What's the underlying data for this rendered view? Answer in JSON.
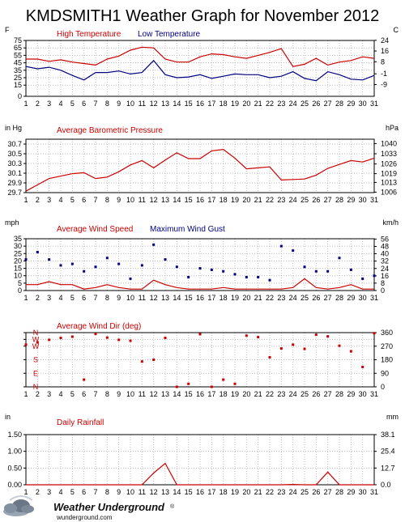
{
  "page": {
    "title": "KMDSMITH1 Weather Graph for November 2012",
    "colors": {
      "red": "#cc0000",
      "blue": "#000080",
      "grid": "#bbbbbb",
      "frame": "#000000"
    }
  },
  "footer": {
    "logo_name": "Weather Underground",
    "logo_mark": "®",
    "logo_url": "wunderground.com"
  },
  "chart_data": [
    {
      "type": "line",
      "title": "",
      "left_unit": "F",
      "right_unit": "C",
      "legend": [
        {
          "name": "High Temperature",
          "color": "#cc0000"
        },
        {
          "name": "Low Temperature",
          "color": "#000080"
        }
      ],
      "x_ticks": [
        1,
        2,
        3,
        4,
        5,
        6,
        7,
        8,
        9,
        10,
        11,
        12,
        13,
        14,
        15,
        16,
        17,
        18,
        19,
        20,
        21,
        22,
        23,
        24,
        25,
        26,
        27,
        28,
        29,
        30,
        31
      ],
      "xlim": [
        1,
        31
      ],
      "ylim": [
        0,
        75
      ],
      "left_ticks": [
        {
          "v": 0,
          "label": "0"
        },
        {
          "v": 15,
          "label": "15"
        },
        {
          "v": 25,
          "label": "25"
        },
        {
          "v": 35,
          "label": "35"
        },
        {
          "v": 45,
          "label": "45"
        },
        {
          "v": 55,
          "label": "55"
        },
        {
          "v": 65,
          "label": "65"
        },
        {
          "v": 75,
          "label": "75"
        }
      ],
      "right_ticks": [
        {
          "v": 75.2,
          "label": "24"
        },
        {
          "v": 60.8,
          "label": "16"
        },
        {
          "v": 46.4,
          "label": "8"
        },
        {
          "v": 30.2,
          "label": "-1"
        },
        {
          "v": 15.8,
          "label": "-9"
        }
      ],
      "series": [
        {
          "name": "High Temperature",
          "color": "#cc0000",
          "x": [
            1,
            2,
            3,
            4,
            5,
            6,
            7,
            8,
            9,
            10,
            11,
            12,
            13,
            14,
            15,
            16,
            17,
            18,
            19,
            20,
            21,
            22,
            23,
            24,
            25,
            26,
            27,
            28,
            29,
            30,
            31
          ],
          "y": [
            50,
            50,
            47,
            49,
            46,
            44,
            42,
            50,
            54,
            62,
            66,
            65,
            50,
            46,
            46,
            53,
            57,
            56,
            53,
            51,
            55,
            59,
            64,
            40,
            43,
            51,
            42,
            46,
            48,
            53,
            51
          ]
        },
        {
          "name": "Low Temperature",
          "color": "#000080",
          "x": [
            1,
            2,
            3,
            4,
            5,
            6,
            7,
            8,
            9,
            10,
            11,
            12,
            13,
            14,
            15,
            16,
            17,
            18,
            19,
            20,
            21,
            22,
            23,
            24,
            25,
            26,
            27,
            28,
            29,
            30,
            31
          ],
          "y": [
            40,
            37,
            39,
            35,
            28,
            22,
            32,
            32,
            34,
            30,
            32,
            48,
            29,
            25,
            26,
            29,
            24,
            27,
            30,
            29,
            29,
            25,
            27,
            33,
            24,
            21,
            33,
            29,
            23,
            22,
            28
          ]
        }
      ]
    },
    {
      "type": "line",
      "title": "",
      "left_unit": "in Hg",
      "right_unit": "hPa",
      "legend": [
        {
          "name": "Average Barometric Pressure",
          "color": "#cc0000"
        }
      ],
      "x_ticks": [
        1,
        2,
        3,
        4,
        5,
        6,
        7,
        8,
        9,
        10,
        11,
        12,
        13,
        14,
        15,
        16,
        17,
        18,
        19,
        20,
        21,
        22,
        23,
        24,
        25,
        26,
        27,
        28,
        29,
        30,
        31
      ],
      "xlim": [
        1,
        31
      ],
      "ylim": [
        29.7,
        30.8
      ],
      "left_ticks": [
        {
          "v": 29.7,
          "label": "29.7"
        },
        {
          "v": 29.9,
          "label": "29.9"
        },
        {
          "v": 30.1,
          "label": "30.1"
        },
        {
          "v": 30.3,
          "label": "30.3"
        },
        {
          "v": 30.5,
          "label": "30.5"
        },
        {
          "v": 30.7,
          "label": "30.7"
        }
      ],
      "right_ticks": [
        {
          "v": 29.71,
          "label": "1006"
        },
        {
          "v": 29.91,
          "label": "1013"
        },
        {
          "v": 30.09,
          "label": "1019"
        },
        {
          "v": 30.29,
          "label": "1026"
        },
        {
          "v": 30.5,
          "label": "1033"
        },
        {
          "v": 30.71,
          "label": "1040"
        }
      ],
      "series": [
        {
          "name": "Average Barometric Pressure",
          "color": "#cc0000",
          "x": [
            1,
            2,
            3,
            4,
            5,
            6,
            7,
            8,
            9,
            10,
            11,
            12,
            13,
            14,
            15,
            16,
            17,
            18,
            19,
            20,
            21,
            22,
            23,
            24,
            25,
            26,
            27,
            28,
            29,
            30,
            31
          ],
          "y": [
            29.73,
            29.86,
            29.99,
            30.04,
            30.09,
            30.11,
            29.99,
            30.02,
            30.13,
            30.27,
            30.36,
            30.21,
            30.37,
            30.52,
            30.4,
            30.4,
            30.56,
            30.59,
            30.41,
            30.19,
            30.21,
            30.23,
            29.96,
            29.97,
            29.98,
            30.06,
            30.2,
            30.28,
            30.36,
            30.33,
            30.41
          ]
        }
      ]
    },
    {
      "type": "line",
      "title": "",
      "left_unit": "mph",
      "right_unit": "km/h",
      "legend": [
        {
          "name": "Average Wind Speed",
          "color": "#cc0000"
        },
        {
          "name": "Maximum Wind Gust",
          "color": "#000080"
        }
      ],
      "x_ticks": [
        1,
        2,
        3,
        4,
        5,
        6,
        7,
        8,
        9,
        10,
        11,
        12,
        13,
        14,
        15,
        16,
        17,
        18,
        19,
        20,
        21,
        22,
        23,
        24,
        25,
        26,
        27,
        28,
        29,
        30,
        31
      ],
      "xlim": [
        1,
        31
      ],
      "ylim": [
        0,
        35
      ],
      "left_ticks": [
        {
          "v": 0,
          "label": "0"
        },
        {
          "v": 5,
          "label": "5"
        },
        {
          "v": 10,
          "label": "10"
        },
        {
          "v": 15,
          "label": "15"
        },
        {
          "v": 20,
          "label": "20"
        },
        {
          "v": 25,
          "label": "25"
        },
        {
          "v": 30,
          "label": "30"
        },
        {
          "v": 35,
          "label": "35"
        }
      ],
      "right_ticks": [
        {
          "v": 0,
          "label": "0"
        },
        {
          "v": 5,
          "label": "8"
        },
        {
          "v": 9.9,
          "label": "16"
        },
        {
          "v": 14.9,
          "label": "24"
        },
        {
          "v": 19.9,
          "label": "32"
        },
        {
          "v": 24.9,
          "label": "40"
        },
        {
          "v": 29.8,
          "label": "48"
        },
        {
          "v": 34.8,
          "label": "56"
        }
      ],
      "series": [
        {
          "name": "Average Wind Speed",
          "color": "#cc0000",
          "style": "line",
          "x": [
            1,
            2,
            3,
            4,
            5,
            6,
            7,
            8,
            9,
            10,
            11,
            12,
            13,
            14,
            15,
            16,
            17,
            18,
            19,
            20,
            21,
            22,
            23,
            24,
            25,
            26,
            27,
            28,
            29,
            30,
            31
          ],
          "y": [
            4,
            4,
            6,
            4,
            4,
            1,
            2,
            4,
            2,
            1,
            1,
            7,
            4,
            2,
            1,
            1,
            1,
            2,
            1,
            1,
            1,
            1,
            1,
            2,
            8,
            2,
            1,
            2,
            4,
            1,
            1
          ]
        },
        {
          "name": "Maximum Wind Gust",
          "color": "#000080",
          "style": "points",
          "x": [
            1,
            2,
            3,
            4,
            5,
            6,
            7,
            8,
            9,
            10,
            11,
            12,
            13,
            14,
            15,
            16,
            17,
            18,
            19,
            20,
            21,
            22,
            23,
            24,
            25,
            26,
            27,
            28,
            29,
            30,
            31
          ],
          "y": [
            21,
            26,
            21,
            17,
            18,
            13,
            16,
            22,
            18,
            8,
            17,
            31,
            21,
            16,
            9,
            15,
            14,
            13,
            11,
            9,
            9,
            7,
            30,
            27,
            16,
            13,
            13,
            22,
            14,
            8,
            10
          ]
        }
      ]
    },
    {
      "type": "scatter",
      "title": "",
      "left_unit": "",
      "right_unit": "",
      "legend": [
        {
          "name": "Average Wind Dir (deg)",
          "color": "#cc0000"
        }
      ],
      "x_ticks": [
        1,
        2,
        3,
        4,
        5,
        6,
        7,
        8,
        9,
        10,
        11,
        12,
        13,
        14,
        15,
        16,
        17,
        18,
        19,
        20,
        21,
        22,
        23,
        24,
        25,
        26,
        27,
        28,
        29,
        30,
        31
      ],
      "xlim": [
        1,
        31
      ],
      "ylim": [
        0,
        360
      ],
      "left_ticks": [
        {
          "v": 360,
          "label": "N"
        },
        {
          "v": 315,
          "label": "W"
        },
        {
          "v": 270,
          "label": "W"
        },
        {
          "v": 180,
          "label": "S"
        },
        {
          "v": 90,
          "label": "E"
        },
        {
          "v": 0,
          "label": "N"
        }
      ],
      "right_ticks": [
        {
          "v": 0,
          "label": "0"
        },
        {
          "v": 90,
          "label": "90"
        },
        {
          "v": 180,
          "label": "180"
        },
        {
          "v": 270,
          "label": "270"
        },
        {
          "v": 360,
          "label": "360"
        }
      ],
      "series": [
        {
          "name": "Average Wind Dir (deg)",
          "color": "#cc0000",
          "x": [
            1,
            2,
            3,
            4,
            5,
            6,
            7,
            8,
            9,
            10,
            11,
            12,
            13,
            14,
            15,
            16,
            17,
            18,
            19,
            20,
            21,
            22,
            23,
            24,
            25,
            26,
            27,
            28,
            29,
            30,
            31
          ],
          "y": [
            280,
            295,
            312,
            325,
            333,
            48,
            352,
            327,
            312,
            306,
            168,
            180,
            325,
            0,
            20,
            350,
            0,
            48,
            20,
            340,
            330,
            196,
            255,
            280,
            252,
            346,
            335,
            273,
            236,
            132,
            356
          ]
        }
      ]
    },
    {
      "type": "area",
      "title": "",
      "left_unit": "in",
      "right_unit": "mm",
      "legend": [
        {
          "name": "Daily Rainfall",
          "color": "#cc0000"
        }
      ],
      "x_ticks": [
        1,
        2,
        3,
        4,
        5,
        6,
        7,
        8,
        9,
        10,
        11,
        12,
        13,
        14,
        15,
        16,
        17,
        18,
        19,
        20,
        21,
        22,
        23,
        24,
        25,
        26,
        27,
        28,
        29,
        30,
        31
      ],
      "xlim": [
        1,
        31
      ],
      "ylim": [
        0,
        1.5
      ],
      "left_ticks": [
        {
          "v": 0,
          "label": "0.00"
        },
        {
          "v": 0.5,
          "label": "0.50"
        },
        {
          "v": 1.0,
          "label": "1.00"
        },
        {
          "v": 1.5,
          "label": "1.50"
        }
      ],
      "right_ticks": [
        {
          "v": 0,
          "label": "0.0"
        },
        {
          "v": 0.5,
          "label": "12.7"
        },
        {
          "v": 1.0,
          "label": "25.4"
        },
        {
          "v": 1.5,
          "label": "38.1"
        }
      ],
      "series": [
        {
          "name": "Daily Rainfall",
          "color": "#cc0000",
          "x": [
            1,
            2,
            3,
            4,
            5,
            6,
            7,
            8,
            9,
            10,
            11,
            12,
            13,
            14,
            15,
            16,
            17,
            18,
            19,
            20,
            21,
            22,
            23,
            24,
            25,
            26,
            27,
            28,
            29,
            30,
            31
          ],
          "y": [
            0,
            0,
            0,
            0,
            0,
            0,
            0,
            0,
            0,
            0,
            0,
            0.35,
            0.64,
            0,
            0,
            0,
            0,
            0,
            0,
            0,
            0,
            0,
            0,
            0.01,
            0,
            0,
            0.38,
            0,
            0,
            0,
            0
          ]
        }
      ]
    }
  ]
}
